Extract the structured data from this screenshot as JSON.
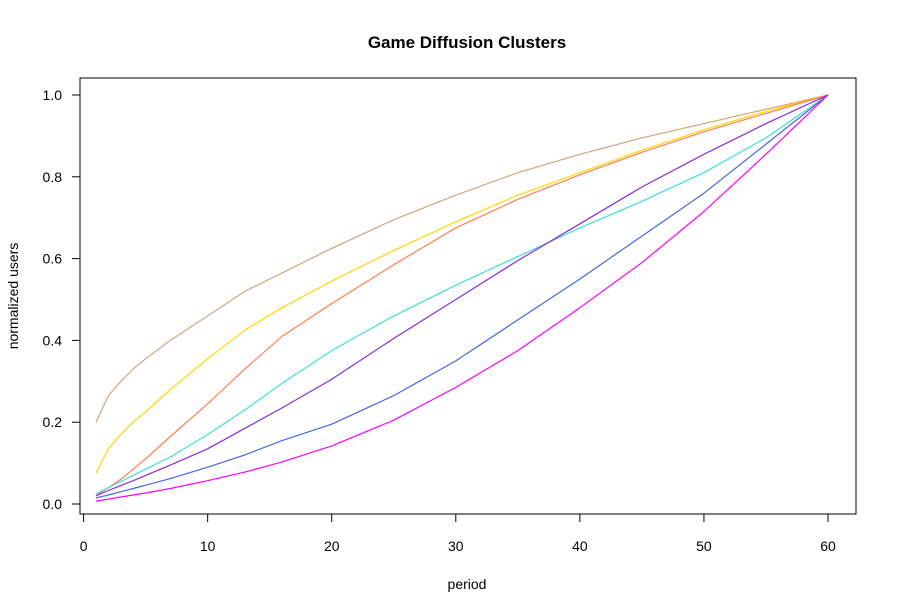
{
  "chart_data": {
    "type": "line",
    "title": "Game Diffusion Clusters",
    "xlabel": "period",
    "ylabel": "normalized users",
    "xlim": [
      1,
      60
    ],
    "ylim": [
      0,
      1
    ],
    "xticks": [
      0,
      10,
      20,
      30,
      40,
      50,
      60
    ],
    "yticks": [
      "0.0",
      "0.2",
      "0.4",
      "0.6",
      "0.8",
      "1.0"
    ],
    "grid": false,
    "legend": "none",
    "series": [
      {
        "color": "#d2a679",
        "x": [
          1,
          2,
          3,
          4,
          5,
          7,
          10,
          13,
          16,
          20,
          25,
          30,
          35,
          40,
          45,
          50,
          55,
          60
        ],
        "values": [
          0.2,
          0.265,
          0.3,
          0.33,
          0.355,
          0.4,
          0.46,
          0.52,
          0.565,
          0.625,
          0.695,
          0.755,
          0.81,
          0.855,
          0.895,
          0.93,
          0.965,
          1.0
        ]
      },
      {
        "color": "#ffd700",
        "x": [
          1,
          2,
          3,
          4,
          5,
          7,
          10,
          13,
          16,
          20,
          25,
          30,
          35,
          40,
          45,
          50,
          55,
          60
        ],
        "values": [
          0.075,
          0.135,
          0.17,
          0.2,
          0.225,
          0.28,
          0.355,
          0.425,
          0.48,
          0.545,
          0.62,
          0.69,
          0.755,
          0.81,
          0.865,
          0.915,
          0.96,
          1.0
        ]
      },
      {
        "color": "#ff7f50",
        "x": [
          1,
          2,
          3,
          4,
          5,
          7,
          10,
          13,
          16,
          20,
          25,
          30,
          35,
          40,
          45,
          50,
          55,
          60
        ],
        "values": [
          0.02,
          0.04,
          0.06,
          0.085,
          0.11,
          0.165,
          0.245,
          0.33,
          0.41,
          0.49,
          0.585,
          0.675,
          0.745,
          0.805,
          0.86,
          0.91,
          0.955,
          1.0
        ]
      },
      {
        "color": "#40e0d0",
        "x": [
          1,
          2,
          3,
          4,
          5,
          7,
          10,
          13,
          16,
          20,
          25,
          30,
          35,
          40,
          45,
          50,
          55,
          60
        ],
        "values": [
          0.025,
          0.04,
          0.055,
          0.07,
          0.085,
          0.115,
          0.17,
          0.23,
          0.295,
          0.375,
          0.46,
          0.535,
          0.605,
          0.675,
          0.74,
          0.81,
          0.895,
          1.0
        ]
      },
      {
        "color": "#8a2be2",
        "x": [
          1,
          2,
          3,
          4,
          5,
          7,
          10,
          13,
          16,
          20,
          25,
          30,
          35,
          40,
          45,
          50,
          55,
          60
        ],
        "values": [
          0.02,
          0.033,
          0.045,
          0.057,
          0.07,
          0.095,
          0.135,
          0.185,
          0.235,
          0.305,
          0.405,
          0.5,
          0.595,
          0.685,
          0.775,
          0.855,
          0.93,
          1.0
        ]
      },
      {
        "color": "#4169e1",
        "x": [
          1,
          2,
          3,
          4,
          5,
          7,
          10,
          13,
          16,
          20,
          25,
          30,
          35,
          40,
          45,
          50,
          55,
          60
        ],
        "values": [
          0.015,
          0.022,
          0.03,
          0.038,
          0.046,
          0.062,
          0.09,
          0.12,
          0.155,
          0.195,
          0.265,
          0.35,
          0.45,
          0.55,
          0.655,
          0.76,
          0.88,
          1.0
        ]
      },
      {
        "color": "#ff00ff",
        "x": [
          1,
          2,
          3,
          4,
          5,
          7,
          10,
          13,
          16,
          20,
          25,
          30,
          35,
          40,
          45,
          50,
          55,
          60
        ],
        "values": [
          0.007,
          0.012,
          0.017,
          0.022,
          0.027,
          0.038,
          0.057,
          0.078,
          0.103,
          0.142,
          0.205,
          0.285,
          0.375,
          0.48,
          0.59,
          0.715,
          0.855,
          1.0
        ]
      }
    ]
  }
}
